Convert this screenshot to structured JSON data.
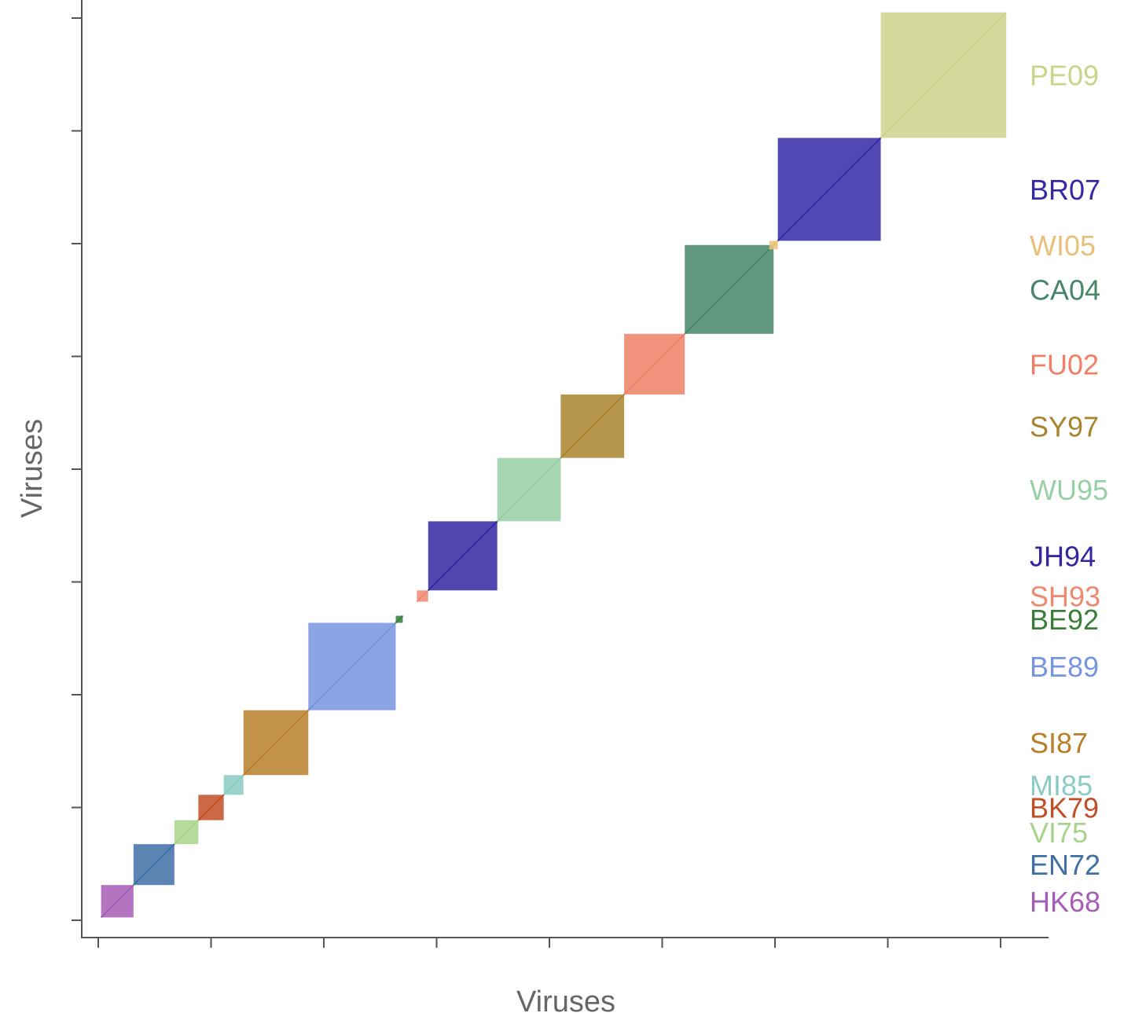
{
  "chart_data": {
    "type": "heatmap",
    "title": "",
    "xlabel": "Viruses",
    "ylabel": "Viruses",
    "xlim": [
      0,
      64
    ],
    "ylim": [
      0,
      64
    ],
    "x_ticks": [
      0,
      8,
      16,
      24,
      32,
      40,
      48,
      56,
      64
    ],
    "y_ticks": [
      0,
      8,
      16,
      24,
      32,
      40,
      48,
      56,
      64
    ],
    "clusters": [
      {
        "name": "HK68",
        "color": "#A65DB5",
        "start": 0.2,
        "end": 2.5
      },
      {
        "name": "EN72",
        "color": "#3E6FA6",
        "start": 2.5,
        "end": 5.4
      },
      {
        "name": "VI75",
        "color": "#A8D38B",
        "start": 5.4,
        "end": 7.1
      },
      {
        "name": "BK79",
        "color": "#C24E26",
        "start": 7.1,
        "end": 8.9
      },
      {
        "name": "MI85",
        "color": "#8ACBC2",
        "start": 8.9,
        "end": 10.3
      },
      {
        "name": "SI87",
        "color": "#B97F2A",
        "start": 10.3,
        "end": 14.9
      },
      {
        "name": "BE89",
        "color": "#7795DF",
        "start": 14.9,
        "end": 21.1
      },
      {
        "name": "BE92",
        "color": "#3B7E3A",
        "start": 21.1,
        "end": 21.6
      },
      {
        "name": "SH93",
        "color": "#EE8970",
        "start": 22.6,
        "end": 23.4
      },
      {
        "name": "JH94",
        "color": "#3327A0",
        "start": 23.4,
        "end": 28.3
      },
      {
        "name": "WU95",
        "color": "#99CFA5",
        "start": 28.3,
        "end": 32.8
      },
      {
        "name": "SY97",
        "color": "#A9842E",
        "start": 32.8,
        "end": 37.3
      },
      {
        "name": "FU02",
        "color": "#EF7F66",
        "start": 37.3,
        "end": 41.6
      },
      {
        "name": "CA04",
        "color": "#478669",
        "start": 41.6,
        "end": 47.9
      },
      {
        "name": "WI05",
        "color": "#E8C07A",
        "start": 47.6,
        "end": 48.2
      },
      {
        "name": "BR07",
        "color": "#3328A6",
        "start": 48.2,
        "end": 55.5
      },
      {
        "name": "PE09",
        "color": "#CBD489",
        "start": 55.5,
        "end": 64.4
      }
    ]
  }
}
